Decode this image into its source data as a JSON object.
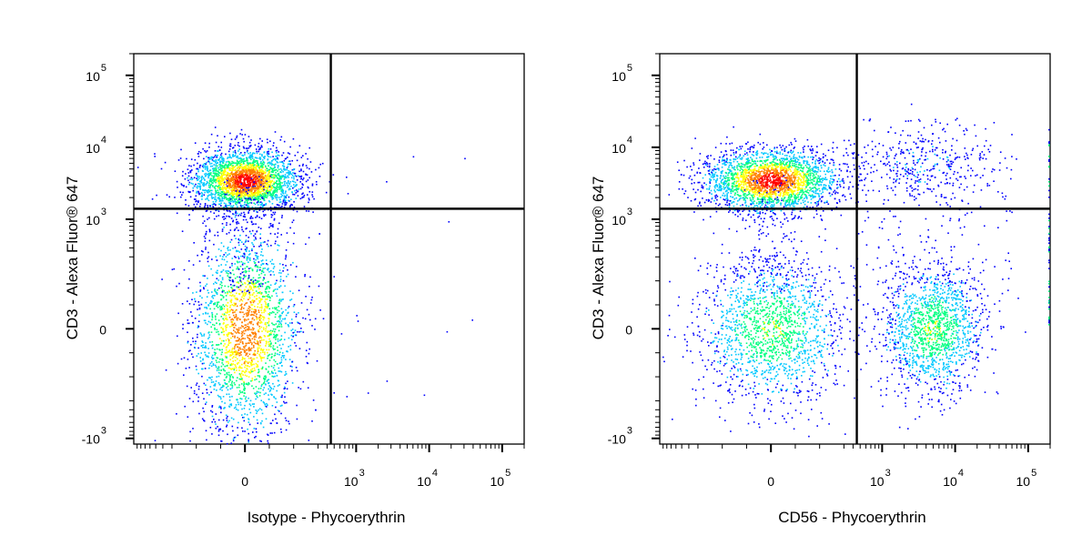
{
  "chart_data": [
    {
      "type": "scatter",
      "subtype": "flow-cytometry-density-dot-plot",
      "xlabel": "Isotype - Phycoerythrin",
      "ylabel": "CD3 - Alexa Fluor® 647",
      "xscale": "biexponential",
      "yscale": "biexponential",
      "xlim": [
        -1000,
        200000
      ],
      "ylim": [
        -1200,
        200000
      ],
      "x_ticks": [
        {
          "value": 0,
          "label": "0"
        },
        {
          "value": 1000,
          "label": "10",
          "exp": "3"
        },
        {
          "value": 10000,
          "label": "10",
          "exp": "4"
        },
        {
          "value": 100000,
          "label": "10",
          "exp": "5"
        }
      ],
      "y_ticks": [
        {
          "value": -1000,
          "label": "-10",
          "exp": "3"
        },
        {
          "value": 0,
          "label": "0"
        },
        {
          "value": 1000,
          "label": "10",
          "exp": "3"
        },
        {
          "value": 10000,
          "label": "10",
          "exp": "4"
        },
        {
          "value": 100000,
          "label": "10",
          "exp": "5"
        }
      ],
      "quadrant_gates": {
        "x": 450,
        "y": 1400
      },
      "density_colors": [
        "#0000ff",
        "#00c8ff",
        "#00ff80",
        "#ffff00",
        "#ff8000",
        "#ff0000"
      ],
      "populations": [
        {
          "x_center": 0,
          "y_center": 3500,
          "x_spread": 110,
          "y_spread": 0.22,
          "relative_count": 2600,
          "peak_density": "red"
        },
        {
          "x_center": 0,
          "y_center": 0,
          "x_spread": 110,
          "y_spread": 220,
          "relative_count": 2200,
          "peak_density": "orange"
        }
      ]
    },
    {
      "type": "scatter",
      "subtype": "flow-cytometry-density-dot-plot",
      "xlabel": "CD56 - Phycoerythrin",
      "ylabel": "CD3 - Alexa Fluor® 647",
      "xscale": "biexponential",
      "yscale": "biexponential",
      "xlim": [
        -1000,
        200000
      ],
      "ylim": [
        -1200,
        200000
      ],
      "x_ticks": [
        {
          "value": 0,
          "label": "0"
        },
        {
          "value": 1000,
          "label": "10",
          "exp": "3"
        },
        {
          "value": 10000,
          "label": "10",
          "exp": "4"
        },
        {
          "value": 100000,
          "label": "10",
          "exp": "5"
        }
      ],
      "y_ticks": [
        {
          "value": -1000,
          "label": "-10",
          "exp": "3"
        },
        {
          "value": 0,
          "label": "0"
        },
        {
          "value": 1000,
          "label": "10",
          "exp": "3"
        },
        {
          "value": 10000,
          "label": "10",
          "exp": "4"
        },
        {
          "value": 100000,
          "label": "10",
          "exp": "5"
        }
      ],
      "quadrant_gates": {
        "x": 450,
        "y": 1400
      },
      "density_colors": [
        "#0000ff",
        "#00c8ff",
        "#00ff80",
        "#ffff00",
        "#ff8000",
        "#ff0000"
      ],
      "populations": [
        {
          "x_center": 0,
          "y_center": 3500,
          "x_spread": 140,
          "y_spread": 0.22,
          "relative_count": 2400,
          "peak_density": "red"
        },
        {
          "x_center": 3500,
          "y_center": 6000,
          "x_spread": 0.45,
          "y_spread": 0.25,
          "relative_count": 350,
          "peak_density": "blue"
        },
        {
          "x_center": 0,
          "y_center": 0,
          "x_spread": 150,
          "y_spread": 150,
          "relative_count": 1600,
          "peak_density": "green"
        },
        {
          "x_center": 5000,
          "y_center": 0,
          "x_spread": 0.35,
          "y_spread": 130,
          "relative_count": 1500,
          "peak_density": "green"
        }
      ]
    }
  ]
}
